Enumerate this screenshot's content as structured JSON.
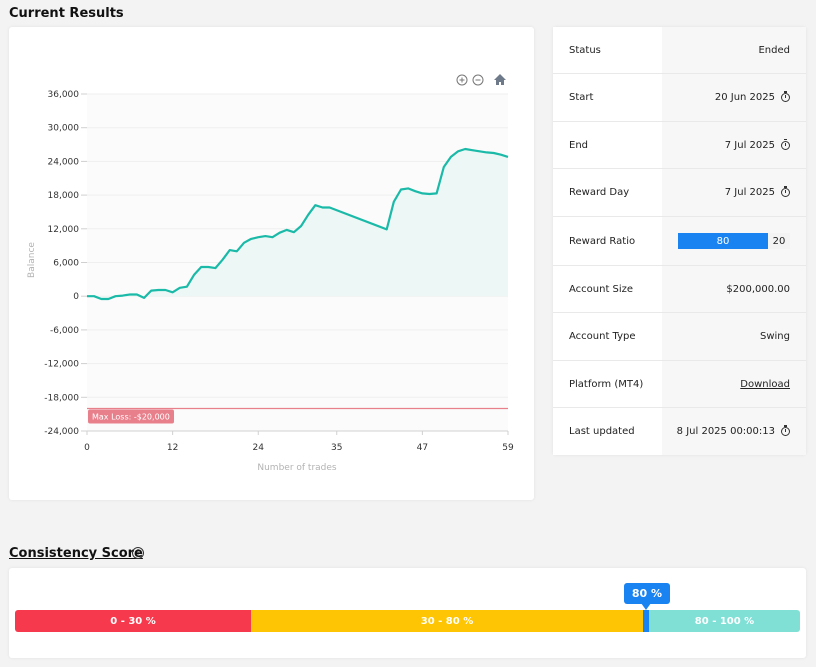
{
  "current_results": {
    "title": "Current Results"
  },
  "chart_data": {
    "type": "area",
    "xlabel": "Number of trades",
    "ylabel": "Balance",
    "xlim": [
      0,
      59
    ],
    "ylim": [
      -24000,
      36000
    ],
    "x_ticks": [
      "0",
      "12",
      "24",
      "35",
      "47",
      "59"
    ],
    "y_ticks": [
      "36,000",
      "30,000",
      "24,000",
      "18,000",
      "12,000",
      "6,000",
      "0",
      "-6,000",
      "-12,000",
      "-18,000",
      "-24,000"
    ],
    "max_loss": {
      "value": -20000,
      "label": "Max Loss: -$20,000"
    },
    "series": [
      {
        "x": [
          0,
          1,
          2,
          3,
          4,
          5,
          6,
          7,
          8,
          9,
          10,
          11,
          12,
          13,
          14,
          15,
          16,
          17,
          18,
          19,
          20,
          21,
          22,
          23,
          24,
          25,
          26,
          27,
          28,
          29,
          30,
          31,
          32,
          33,
          34,
          42,
          43,
          44,
          45,
          46,
          47,
          48,
          49,
          50,
          51,
          52,
          53,
          54,
          55,
          56,
          57,
          58,
          59
        ],
        "y": [
          0,
          0,
          -500,
          -500,
          0,
          100,
          300,
          300,
          -300,
          1000,
          1100,
          1100,
          700,
          1500,
          1700,
          3800,
          5200,
          5200,
          5000,
          6500,
          8200,
          8000,
          9500,
          10200,
          10500,
          10700,
          10500,
          11300,
          11800,
          11400,
          12500,
          14500,
          16200,
          15800,
          15800,
          11900,
          16800,
          19000,
          19200,
          18700,
          18300,
          18200,
          18300,
          23000,
          24800,
          25800,
          26200,
          26000,
          25800,
          25600,
          25500,
          25200,
          24800
        ]
      }
    ],
    "colors": {
      "line": "#1bbaa8",
      "fill": "#edf8f6",
      "max_loss": "#e8808c"
    }
  },
  "toolbar": {
    "zoom_in_icon": "zoom-in-icon",
    "zoom_out_icon": "zoom-out-icon",
    "home_icon": "home-icon"
  },
  "info": {
    "status": {
      "label": "Status",
      "value": "Ended"
    },
    "start": {
      "label": "Start",
      "value": "20 Jun 2025"
    },
    "end": {
      "label": "End",
      "value": "7 Jul 2025"
    },
    "reward_day": {
      "label": "Reward Day",
      "value": "7 Jul 2025"
    },
    "reward_ratio": {
      "label": "Reward Ratio",
      "left": "80",
      "right": "20"
    },
    "account_size": {
      "label": "Account Size",
      "value": "$200,000.00"
    },
    "account_type": {
      "label": "Account Type",
      "value": "Swing"
    },
    "platform": {
      "label": "Platform (MT4)",
      "value": "Download"
    },
    "last_updated": {
      "label": "Last updated",
      "value": "8 Jul 2025 00:00:13"
    }
  },
  "consistency": {
    "title": "Consistency Score",
    "value_label": "80 %",
    "value": 80,
    "segments": [
      {
        "label": "0 - 30 %",
        "color": "#f7394d"
      },
      {
        "label": "30 - 80 %",
        "color": "#fdc503"
      },
      {
        "label": "80 - 100 %",
        "color": "#80e0d6"
      }
    ],
    "marker_color": "#1a83f2"
  }
}
